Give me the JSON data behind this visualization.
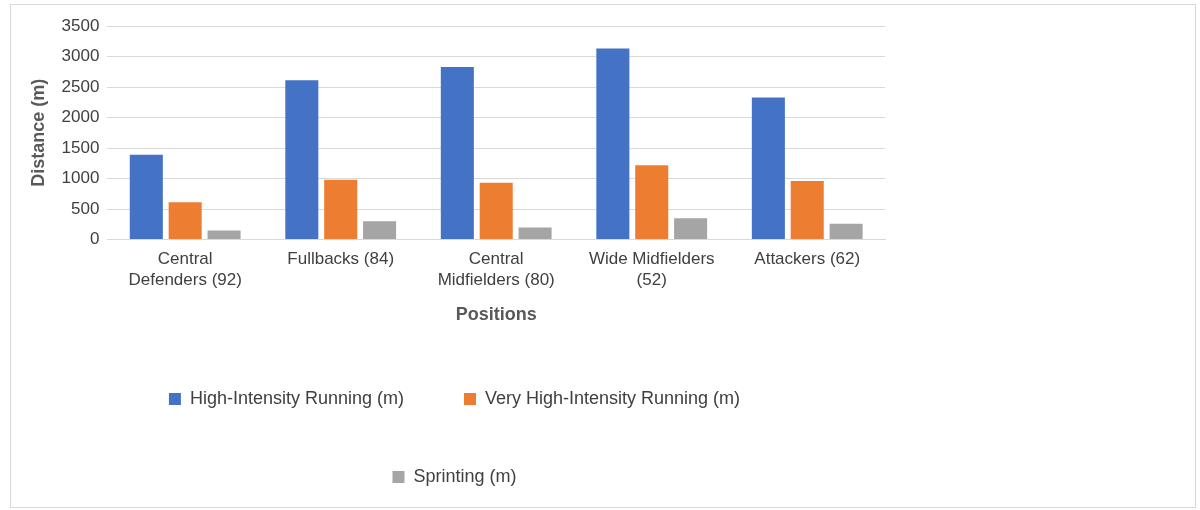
{
  "chart_data": {
    "type": "bar",
    "xlabel": "Positions",
    "ylabel": "Distance (m)",
    "categories": [
      "Central Defenders (92)",
      "Fullbacks (84)",
      "Central Midfielders (80)",
      "Wide Midfielders (52)",
      "Attackers (62)"
    ],
    "series": [
      {
        "name": "High-Intensity Running (m)",
        "color": "#4472c4",
        "values": [
          1390,
          2610,
          2830,
          3130,
          2330
        ]
      },
      {
        "name": "Very High-Intensity Running (m)",
        "color": "#ed7d31",
        "values": [
          610,
          980,
          930,
          1220,
          960
        ]
      },
      {
        "name": "Sprinting (m)",
        "color": "#a5a5a5",
        "values": [
          150,
          300,
          200,
          350,
          260
        ]
      }
    ],
    "ylim": [
      0,
      3500
    ],
    "yticks": [
      0,
      500,
      1000,
      1500,
      2000,
      2500,
      3000,
      3500
    ],
    "grid": "y",
    "legend": "bottom"
  }
}
